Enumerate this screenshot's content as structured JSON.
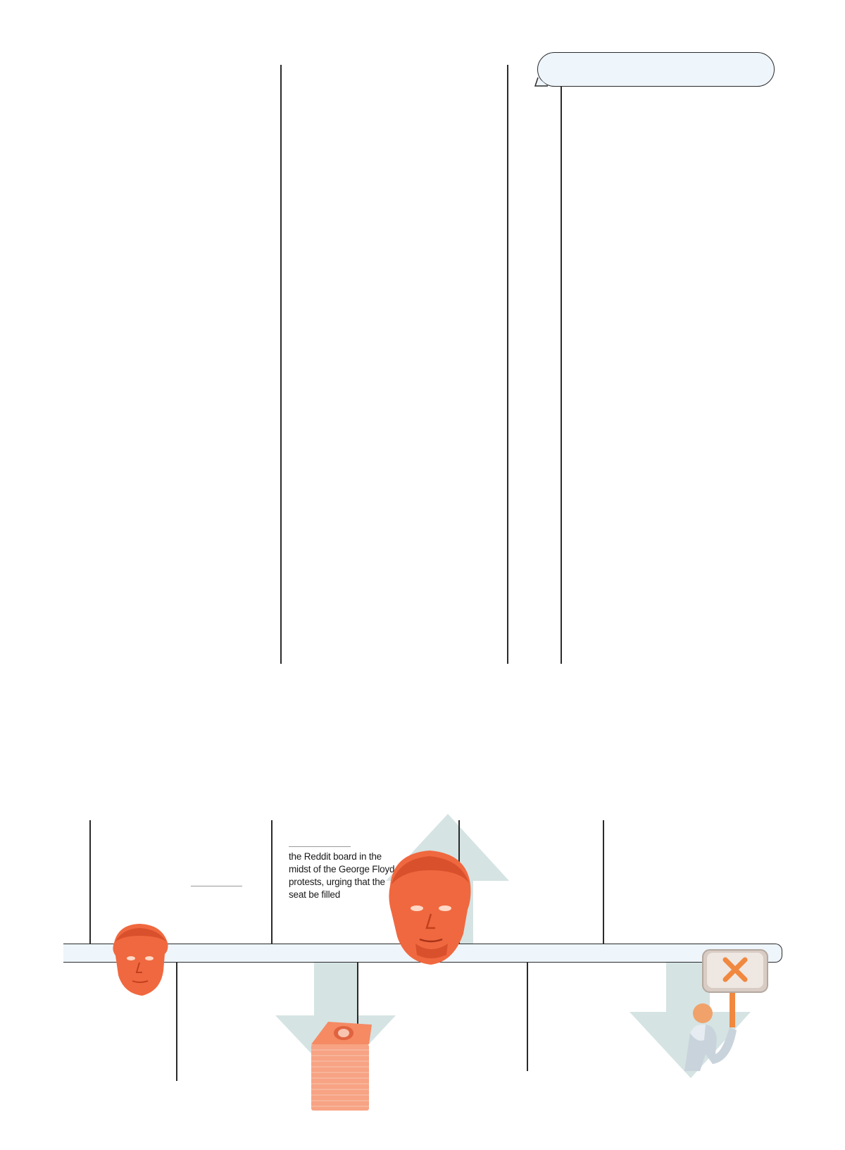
{
  "timeline": {
    "note_text": "the Reddit board in the midst of the George Floyd protests, urging that the seat be filled"
  },
  "illustrations": {
    "person_left": "portrait-icon",
    "person_center": "portrait-icon",
    "money": "money-stack-icon",
    "protest": "protest-sign-icon"
  },
  "colors": {
    "accent": "#f0683f",
    "arrow": "#d5e3e3",
    "bar_fill": "#eef5fb",
    "line": "#2a2a2a"
  }
}
